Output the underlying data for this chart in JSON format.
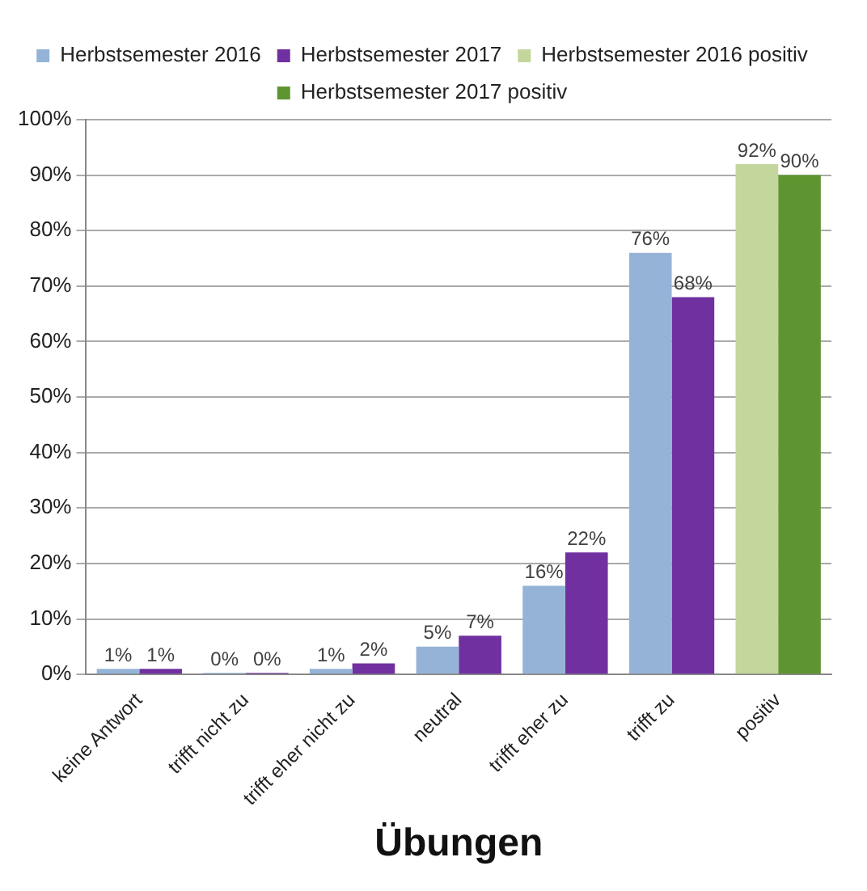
{
  "chart_data": {
    "type": "bar",
    "xlabel": "Übungen",
    "categories": [
      "keine Antwort",
      "trifft nicht zu",
      "trifft eher nicht zu",
      "neutral",
      "trifft eher zu",
      "trifft zu",
      "positiv"
    ],
    "series": [
      {
        "name": "Herbstsemester 2016",
        "color": "#95b3d7",
        "values": [
          1,
          0,
          1,
          5,
          16,
          76,
          null
        ],
        "value_labels": [
          "1%",
          "0%",
          "1%",
          "5%",
          "16%",
          "76%",
          null
        ]
      },
      {
        "name": "Herbstsemester 2017",
        "color": "#7030a0",
        "values": [
          1,
          0,
          2,
          7,
          22,
          68,
          null
        ],
        "value_labels": [
          "1%",
          "0%",
          "2%",
          "7%",
          "22%",
          "68%",
          null
        ]
      },
      {
        "name": "Herbstsemester 2016 positiv",
        "color": "#c3d69b",
        "values": [
          null,
          null,
          null,
          null,
          null,
          null,
          92
        ],
        "value_labels": [
          null,
          null,
          null,
          null,
          null,
          null,
          "92%"
        ]
      },
      {
        "name": "Herbstsemester 2017 positiv",
        "color": "#5f9530",
        "values": [
          null,
          null,
          null,
          null,
          null,
          null,
          90
        ],
        "value_labels": [
          null,
          null,
          null,
          null,
          null,
          null,
          "90%"
        ]
      }
    ],
    "ylim": [
      0,
      100
    ],
    "yticks": [
      {
        "value": 0,
        "label": "0%"
      },
      {
        "value": 10,
        "label": "10%"
      },
      {
        "value": 20,
        "label": "20%"
      },
      {
        "value": 30,
        "label": "30%"
      },
      {
        "value": 40,
        "label": "40%"
      },
      {
        "value": 50,
        "label": "50%"
      },
      {
        "value": 60,
        "label": "60%"
      },
      {
        "value": 70,
        "label": "70%"
      },
      {
        "value": 80,
        "label": "80%"
      },
      {
        "value": 90,
        "label": "90%"
      },
      {
        "value": 100,
        "label": "100%"
      }
    ],
    "grid": "y",
    "legend": "top"
  }
}
